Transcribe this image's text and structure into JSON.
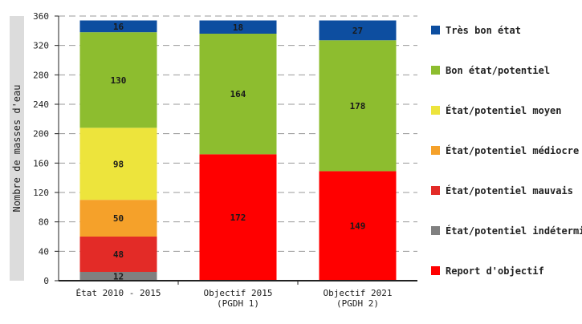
{
  "chart_data": {
    "type": "bar",
    "stacked": true,
    "ylabel": "Nombre de masses d'eau",
    "ylim": [
      0,
      360
    ],
    "yticks": [
      0,
      40,
      80,
      120,
      160,
      200,
      240,
      280,
      320,
      360
    ],
    "grid": true,
    "legend_position": "right",
    "categories": [
      [
        "État 2010 - 2015"
      ],
      [
        "Objectif 2015",
        "(PGDH 1)"
      ],
      [
        "Objectif 2021",
        "(PGDH 2)"
      ]
    ],
    "series": [
      {
        "name": "État/potentiel indéterminé",
        "color": "#808080",
        "values": [
          12,
          0,
          0
        ]
      },
      {
        "name": "État/potentiel mauvais",
        "color": "#e32b27",
        "values": [
          48,
          0,
          0
        ]
      },
      {
        "name": "État/potentiel médiocre",
        "color": "#f5a12a",
        "values": [
          50,
          0,
          0
        ]
      },
      {
        "name": "État/potentiel moyen",
        "color": "#ede43c",
        "values": [
          98,
          0,
          0
        ]
      },
      {
        "name": "Report d'objectif",
        "color": "#ff0000",
        "values": [
          0,
          172,
          149
        ]
      },
      {
        "name": "Bon état/potentiel",
        "color": "#8dbd2f",
        "values": [
          130,
          164,
          178
        ]
      },
      {
        "name": "Très bon état",
        "color": "#0d4ea0",
        "values": [
          16,
          18,
          27
        ]
      }
    ],
    "legend_order": [
      "Très bon état",
      "Bon état/potentiel",
      "État/potentiel moyen",
      "État/potentiel médiocre",
      "État/potentiel mauvais",
      "État/potentiel indéterminé",
      "Report d'objectif"
    ]
  }
}
